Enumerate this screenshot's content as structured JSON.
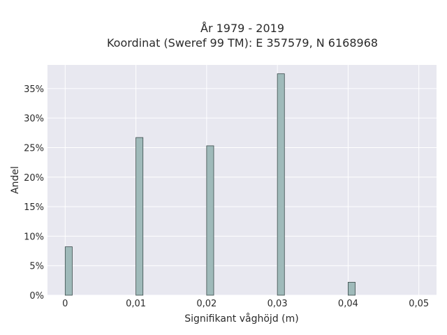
{
  "chart_data": {
    "type": "bar",
    "title_line1": "År 1979 - 2019",
    "title_line2": "Koordinat (Sweref 99 TM): E 357579, N 6168968",
    "xlabel": "Signifikant våghöjd (m)",
    "ylabel": "Andel",
    "x_ticks": [
      0,
      0.01,
      0.02,
      0.03,
      0.04,
      0.05
    ],
    "x_tick_labels": [
      "0",
      "0,01",
      "0,02",
      "0,03",
      "0,04",
      "0,05"
    ],
    "y_ticks": [
      0,
      5,
      10,
      15,
      20,
      25,
      30,
      35
    ],
    "y_tick_labels": [
      "0%",
      "5%",
      "10%",
      "15%",
      "20%",
      "25%",
      "30%",
      "35%"
    ],
    "xlim": [
      -0.0025,
      0.0525
    ],
    "ylim": [
      0,
      39
    ],
    "bar_width": 0.001,
    "bars": [
      {
        "x": 0.0,
        "value": 8.2
      },
      {
        "x": 0.01,
        "value": 26.7
      },
      {
        "x": 0.02,
        "value": 25.3
      },
      {
        "x": 0.03,
        "value": 37.5
      },
      {
        "x": 0.04,
        "value": 2.2
      }
    ],
    "grid": true,
    "colors": {
      "plot_bg": "#e8e8f0",
      "grid": "#ffffff",
      "bar_fill": "#9fbaba",
      "bar_stroke": "#3a4a4a"
    }
  }
}
